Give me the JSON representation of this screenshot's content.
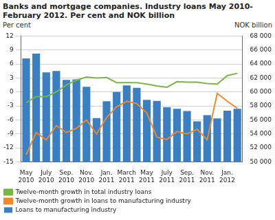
{
  "chart_data": {
    "type": "bar",
    "title": [
      "Banks and mortgage companies. Industry loans May 2010-",
      "February 2012. Per cent and NOK billion"
    ],
    "y_label": "Per cent",
    "y2_label": "NOK billion",
    "categories": [
      "May 2010",
      null,
      "July 2010",
      null,
      "Sep. 2010",
      null,
      "Nov. 2010",
      null,
      "Jan. 2011",
      null,
      "March 2011",
      null,
      "May 2011",
      null,
      "July 2011",
      null,
      "Sep. 2011",
      null,
      "Nov. 2011",
      null,
      "Jan. 2012",
      null
    ],
    "series": [
      {
        "name": "Loans to manufacturing industry",
        "type": "bar",
        "axis": "y2",
        "color": "#3a7fc1",
        "values": [
          64800,
          65470,
          62800,
          63000,
          61730,
          61800,
          60730,
          56270,
          58670,
          60000,
          60930,
          60600,
          58870,
          58730,
          57800,
          57600,
          57270,
          55800,
          56670,
          56200,
          57330,
          57600
        ]
      },
      {
        "name": "Twelve-month growth in total industry loans",
        "type": "line",
        "color": "#77b83f",
        "values": [
          -2.3,
          -1.0,
          -1.0,
          0.0,
          1.5,
          2.5,
          3.2,
          3.0,
          3.1,
          2.0,
          2.0,
          2.0,
          1.7,
          1.3,
          1.0,
          2.2,
          2.1,
          2.1,
          1.8,
          1.7,
          3.5,
          4.0
        ]
      },
      {
        "name": "Twelve-month growth in loans to manufacturing industry",
        "type": "line",
        "color": "#f0882a",
        "values": [
          -13.5,
          -8.7,
          -10.3,
          -7.2,
          -8.7,
          -7.8,
          -6.0,
          -9.0,
          -5.5,
          -3.2,
          -2.0,
          -2.5,
          -4.5,
          -9.7,
          -10.2,
          -8.5,
          -9.0,
          -8.0,
          -10.3,
          -0.3,
          -2.0,
          -3.5
        ]
      }
    ],
    "ylim": [
      -15,
      12
    ],
    "yticks": [
      -15,
      -12,
      -9,
      -6,
      -3,
      0,
      3,
      6,
      9,
      12
    ],
    "y2lim": [
      50000,
      68000
    ],
    "y2ticks": [
      {
        "value": 50000,
        "label": "50 000"
      },
      {
        "value": 52000,
        "label": "52 000"
      },
      {
        "value": 54000,
        "label": "54 000"
      },
      {
        "value": 56000,
        "label": "56 000"
      },
      {
        "value": 58000,
        "label": "58 000"
      },
      {
        "value": 60000,
        "label": "60 000"
      },
      {
        "value": 62000,
        "label": "62 000"
      },
      {
        "value": 64000,
        "label": "64 000"
      },
      {
        "value": 66000,
        "label": "66 000"
      },
      {
        "value": 68000,
        "label": "68 000"
      }
    ],
    "grid": true,
    "legend": "bottom"
  }
}
